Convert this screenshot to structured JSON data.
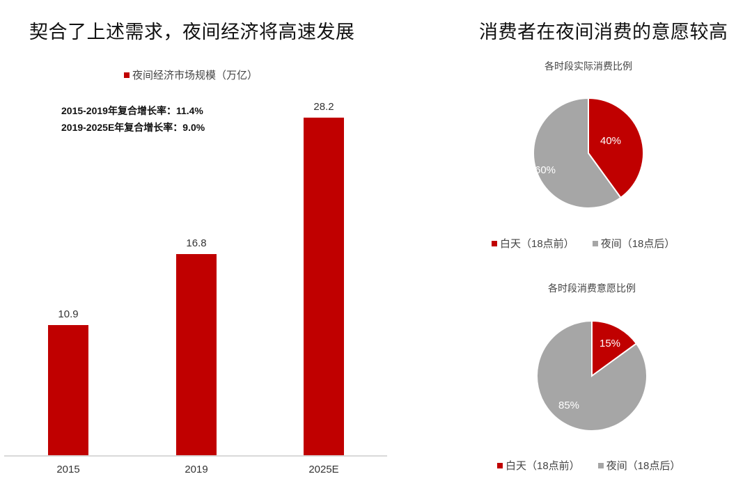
{
  "left": {
    "title": "契合了上述需求，夜间经济将高速发展",
    "legend_label": "夜间经济市场规模（万亿）",
    "notes": [
      "2015-2019年复合增长率：11.4%",
      "2019-2025E年复合增长率：9.0%"
    ]
  },
  "right": {
    "title": "消费者在夜间消费的意愿较高",
    "pie1": {
      "title": "各时段实际消费比例",
      "labels": [
        "40%",
        "60%"
      ]
    },
    "pie2": {
      "title": "各时段消费意愿比例",
      "labels": [
        "15%",
        "85%"
      ]
    },
    "legend": [
      "白天（18点前）",
      "夜间（18点后）"
    ]
  },
  "colors": {
    "red": "#c00000",
    "gray": "#a6a6a6",
    "axis": "#d9d9d9"
  },
  "chart_data": [
    {
      "type": "bar",
      "title": "契合了上述需求，夜间经济将高速发展",
      "categories": [
        "2015",
        "2019",
        "2025E"
      ],
      "series": [
        {
          "name": "夜间经济市场规模（万亿）",
          "values": [
            10.9,
            16.8,
            28.2
          ]
        }
      ],
      "value_labels": [
        "10.9",
        "16.8",
        "28.2"
      ],
      "annotations": [
        "2015-2019年复合增长率：11.4%",
        "2019-2025E年复合增长率：9.0%"
      ],
      "xlabel": "",
      "ylabel": "",
      "ylim": [
        0,
        30
      ],
      "grid": false,
      "legend_position": "top"
    },
    {
      "type": "pie",
      "title": "各时段实际消费比例",
      "categories": [
        "白天（18点前）",
        "夜间（18点后）"
      ],
      "values": [
        40,
        60
      ],
      "legend_position": "bottom"
    },
    {
      "type": "pie",
      "title": "各时段消费意愿比例",
      "categories": [
        "白天（18点前）",
        "夜间（18点后）"
      ],
      "values": [
        15,
        85
      ],
      "legend_position": "bottom"
    }
  ]
}
